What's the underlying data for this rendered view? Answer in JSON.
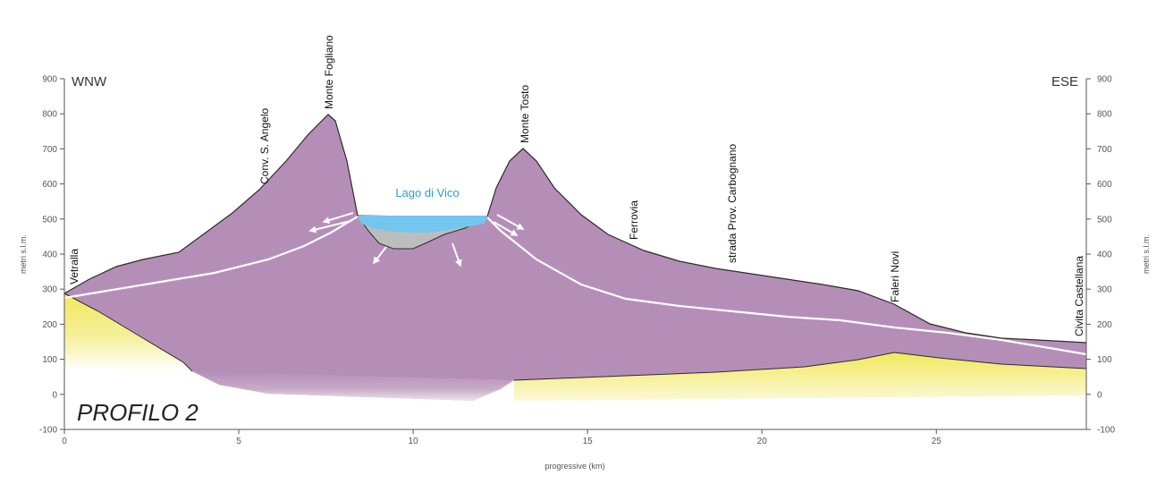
{
  "profile_title": "PROFILO 2",
  "direction_left": "WNW",
  "direction_right": "ESE",
  "y_axis_label_left": "metri s.l.m.",
  "y_axis_label_right": "metri s.l.m.",
  "x_axis_label": "progressive (km)",
  "lake_label": "Lago di Vico",
  "y_ticks": [
    -100,
    0,
    100,
    200,
    300,
    400,
    500,
    600,
    700,
    800,
    900
  ],
  "x_ticks": [
    0,
    5,
    10,
    15,
    20,
    25
  ],
  "place_labels": [
    {
      "text": "Vetralla"
    },
    {
      "text": "Conv. S. Angelo"
    },
    {
      "text": "Monte Fogliano"
    },
    {
      "text": "Monte Tosto"
    },
    {
      "text": "Ferrovia"
    },
    {
      "text": "strada Prov. Carbognano"
    },
    {
      "text": "Faleri Novi"
    },
    {
      "text": "Civita Castellana"
    }
  ],
  "colors": {
    "volcanic": "#b58eb8",
    "substrate": "#f2e85a",
    "lake": "#74c6ee",
    "lake_sediment": "#b9b9b9",
    "water_table": "#ffffff"
  }
}
